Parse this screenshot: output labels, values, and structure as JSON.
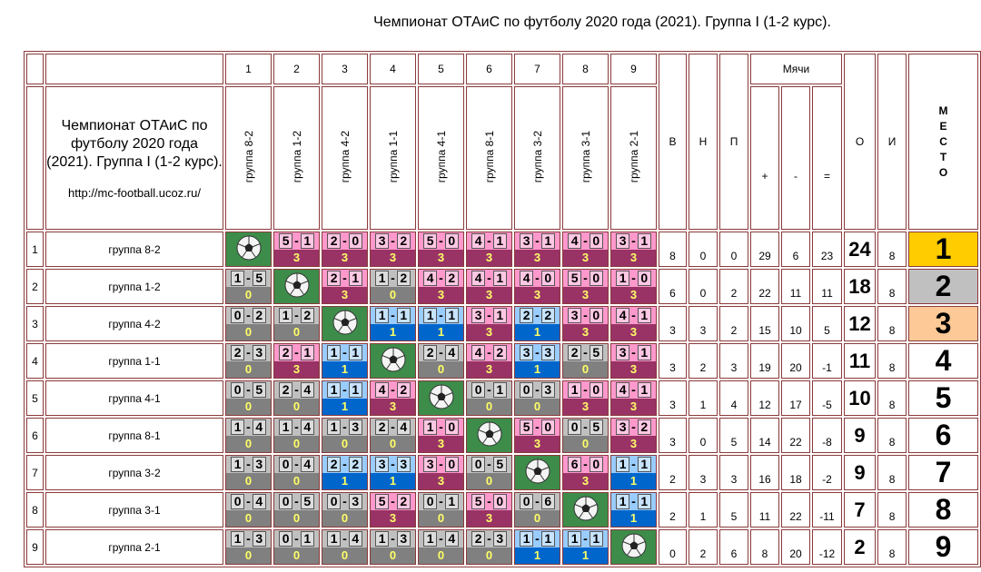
{
  "title": "Чемпионат ОТАиС по футболу 2020 года (2021). Группа I (1-2 курс).",
  "header": {
    "corner_text": "Чемпионат ОТАиС по футболу 2020 года (2021). Группа I (1-2 курс).",
    "url": "http://mc-football.ucoz.ru/"
  },
  "columns": {
    "numbers": [
      1,
      2,
      3,
      4,
      5,
      6,
      7,
      8,
      9
    ],
    "teams": [
      "группа 8-2",
      "группа 1-2",
      "группа 4-2",
      "группа 1-1",
      "группа 4-1",
      "группа 8-1",
      "группа 3-2",
      "группа 3-1",
      "группа 2-1"
    ],
    "wins": "В",
    "draws": "Н",
    "losses": "П",
    "goals": "Мячи",
    "goals_for": "+",
    "goals_against": "-",
    "goal_diff": "=",
    "points": "О",
    "games": "И",
    "place": "МЕСТО"
  },
  "score_separator": "-",
  "rows": [
    {
      "number": 1,
      "team": "группа 8-2",
      "results": [
        null,
        {
          "home": 5,
          "away": 1,
          "points": 3
        },
        {
          "home": 2,
          "away": 0,
          "points": 3
        },
        {
          "home": 3,
          "away": 2,
          "points": 3
        },
        {
          "home": 5,
          "away": 0,
          "points": 3
        },
        {
          "home": 4,
          "away": 1,
          "points": 3
        },
        {
          "home": 3,
          "away": 1,
          "points": 3
        },
        {
          "home": 4,
          "away": 0,
          "points": 3
        },
        {
          "home": 3,
          "away": 1,
          "points": 3
        }
      ],
      "wins": 8,
      "draws": 0,
      "losses": 0,
      "goals_for": 29,
      "goals_against": 6,
      "goal_diff": 23,
      "points": 24,
      "games": 8,
      "place": 1
    },
    {
      "number": 2,
      "team": "группа 1-2",
      "results": [
        {
          "home": 1,
          "away": 5,
          "points": 0
        },
        null,
        {
          "home": 2,
          "away": 1,
          "points": 3
        },
        {
          "home": 1,
          "away": 2,
          "points": 0
        },
        {
          "home": 4,
          "away": 2,
          "points": 3
        },
        {
          "home": 4,
          "away": 1,
          "points": 3
        },
        {
          "home": 4,
          "away": 0,
          "points": 3
        },
        {
          "home": 5,
          "away": 0,
          "points": 3
        },
        {
          "home": 1,
          "away": 0,
          "points": 3
        }
      ],
      "wins": 6,
      "draws": 0,
      "losses": 2,
      "goals_for": 22,
      "goals_against": 11,
      "goal_diff": 11,
      "points": 18,
      "games": 8,
      "place": 2
    },
    {
      "number": 3,
      "team": "группа 4-2",
      "results": [
        {
          "home": 0,
          "away": 2,
          "points": 0
        },
        {
          "home": 1,
          "away": 2,
          "points": 0
        },
        null,
        {
          "home": 1,
          "away": 1,
          "points": 1
        },
        {
          "home": 1,
          "away": 1,
          "points": 1
        },
        {
          "home": 3,
          "away": 1,
          "points": 3
        },
        {
          "home": 2,
          "away": 2,
          "points": 1
        },
        {
          "home": 3,
          "away": 0,
          "points": 3
        },
        {
          "home": 4,
          "away": 1,
          "points": 3
        }
      ],
      "wins": 3,
      "draws": 3,
      "losses": 2,
      "goals_for": 15,
      "goals_against": 10,
      "goal_diff": 5,
      "points": 12,
      "games": 8,
      "place": 3
    },
    {
      "number": 4,
      "team": "группа 1-1",
      "results": [
        {
          "home": 2,
          "away": 3,
          "points": 0
        },
        {
          "home": 2,
          "away": 1,
          "points": 3
        },
        {
          "home": 1,
          "away": 1,
          "points": 1
        },
        null,
        {
          "home": 2,
          "away": 4,
          "points": 0
        },
        {
          "home": 4,
          "away": 2,
          "points": 3
        },
        {
          "home": 3,
          "away": 3,
          "points": 1
        },
        {
          "home": 2,
          "away": 5,
          "points": 0
        },
        {
          "home": 3,
          "away": 1,
          "points": 3
        }
      ],
      "wins": 3,
      "draws": 2,
      "losses": 3,
      "goals_for": 19,
      "goals_against": 20,
      "goal_diff": -1,
      "points": 11,
      "games": 8,
      "place": 4
    },
    {
      "number": 5,
      "team": "группа 4-1",
      "results": [
        {
          "home": 0,
          "away": 5,
          "points": 0
        },
        {
          "home": 2,
          "away": 4,
          "points": 0
        },
        {
          "home": 1,
          "away": 1,
          "points": 1
        },
        {
          "home": 4,
          "away": 2,
          "points": 3
        },
        null,
        {
          "home": 0,
          "away": 1,
          "points": 0
        },
        {
          "home": 0,
          "away": 3,
          "points": 0
        },
        {
          "home": 1,
          "away": 0,
          "points": 3
        },
        {
          "home": 4,
          "away": 1,
          "points": 3
        }
      ],
      "wins": 3,
      "draws": 1,
      "losses": 4,
      "goals_for": 12,
      "goals_against": 17,
      "goal_diff": -5,
      "points": 10,
      "games": 8,
      "place": 5
    },
    {
      "number": 6,
      "team": "группа 8-1",
      "results": [
        {
          "home": 1,
          "away": 4,
          "points": 0
        },
        {
          "home": 1,
          "away": 4,
          "points": 0
        },
        {
          "home": 1,
          "away": 3,
          "points": 0
        },
        {
          "home": 2,
          "away": 4,
          "points": 0
        },
        {
          "home": 1,
          "away": 0,
          "points": 3
        },
        null,
        {
          "home": 5,
          "away": 0,
          "points": 3
        },
        {
          "home": 0,
          "away": 5,
          "points": 0
        },
        {
          "home": 3,
          "away": 2,
          "points": 3
        }
      ],
      "wins": 3,
      "draws": 0,
      "losses": 5,
      "goals_for": 14,
      "goals_against": 22,
      "goal_diff": -8,
      "points": 9,
      "games": 8,
      "place": 6
    },
    {
      "number": 7,
      "team": "группа 3-2",
      "results": [
        {
          "home": 1,
          "away": 3,
          "points": 0
        },
        {
          "home": 0,
          "away": 4,
          "points": 0
        },
        {
          "home": 2,
          "away": 2,
          "points": 1
        },
        {
          "home": 3,
          "away": 3,
          "points": 1
        },
        {
          "home": 3,
          "away": 0,
          "points": 3
        },
        {
          "home": 0,
          "away": 5,
          "points": 0
        },
        null,
        {
          "home": 6,
          "away": 0,
          "points": 3
        },
        {
          "home": 1,
          "away": 1,
          "points": 1
        }
      ],
      "wins": 2,
      "draws": 3,
      "losses": 3,
      "goals_for": 16,
      "goals_against": 18,
      "goal_diff": -2,
      "points": 9,
      "games": 8,
      "place": 7
    },
    {
      "number": 8,
      "team": "группа 3-1",
      "results": [
        {
          "home": 0,
          "away": 4,
          "points": 0
        },
        {
          "home": 0,
          "away": 5,
          "points": 0
        },
        {
          "home": 0,
          "away": 3,
          "points": 0
        },
        {
          "home": 5,
          "away": 2,
          "points": 3
        },
        {
          "home": 0,
          "away": 1,
          "points": 0
        },
        {
          "home": 5,
          "away": 0,
          "points": 3
        },
        {
          "home": 0,
          "away": 6,
          "points": 0
        },
        null,
        {
          "home": 1,
          "away": 1,
          "points": 1
        }
      ],
      "wins": 2,
      "draws": 1,
      "losses": 5,
      "goals_for": 11,
      "goals_against": 22,
      "goal_diff": -11,
      "points": 7,
      "games": 8,
      "place": 8
    },
    {
      "number": 9,
      "team": "группа 2-1",
      "results": [
        {
          "home": 1,
          "away": 3,
          "points": 0
        },
        {
          "home": 0,
          "away": 1,
          "points": 0
        },
        {
          "home": 1,
          "away": 4,
          "points": 0
        },
        {
          "home": 1,
          "away": 3,
          "points": 0
        },
        {
          "home": 1,
          "away": 4,
          "points": 0
        },
        {
          "home": 2,
          "away": 3,
          "points": 0
        },
        {
          "home": 1,
          "away": 1,
          "points": 1
        },
        {
          "home": 1,
          "away": 1,
          "points": 1
        },
        null
      ],
      "wins": 0,
      "draws": 2,
      "losses": 6,
      "goals_for": 8,
      "goals_against": 20,
      "goal_diff": -12,
      "points": 2,
      "games": 8,
      "place": 9
    }
  ]
}
